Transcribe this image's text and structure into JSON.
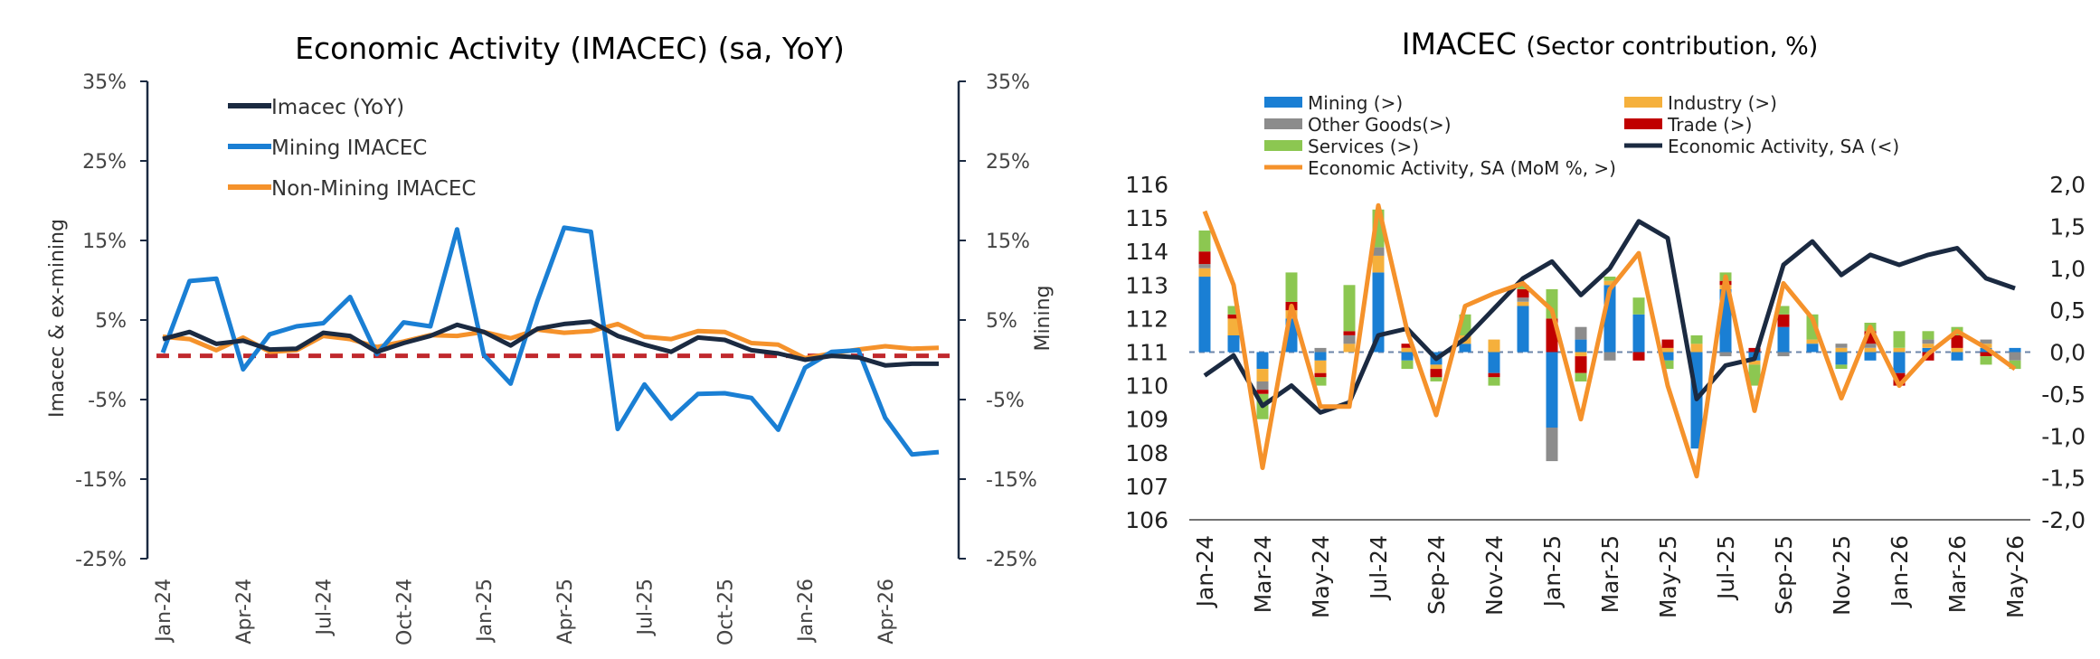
{
  "chart_data": [
    {
      "type": "line",
      "title": "Economic Activity (IMACEC)  (sa, YoY)",
      "ylabel": "Imacec & ex-mining",
      "y2label": "Mining",
      "ylim": [
        -25,
        35
      ],
      "y2lim": [
        -25,
        35
      ],
      "yticks": [
        "35%",
        "25%",
        "15%",
        "5%",
        "-5%",
        "-15%",
        "-25%"
      ],
      "y2ticks": [
        "35%",
        "25%",
        "15%",
        "5%",
        "-5%",
        "-15%",
        "-25%"
      ],
      "xticks": [
        "Jan-24",
        "Apr-24",
        "Jul-24",
        "Oct-24",
        "Jan-25",
        "Apr-25",
        "Jul-25",
        "Oct-25",
        "Jan-26",
        "Apr-26"
      ],
      "x": [
        "Jan-24",
        "Feb-24",
        "Mar-24",
        "Apr-24",
        "May-24",
        "Jun-24",
        "Jul-24",
        "Aug-24",
        "Sep-24",
        "Oct-24",
        "Nov-24",
        "Dec-24",
        "Jan-25",
        "Feb-25",
        "Mar-25",
        "Apr-25",
        "May-25",
        "Jun-25",
        "Jul-25",
        "Aug-25",
        "Sep-25",
        "Oct-25",
        "Nov-25",
        "Dec-25",
        "Jan-26",
        "Feb-26",
        "Mar-26",
        "Apr-26",
        "May-26",
        "Jun-26"
      ],
      "legend_position": "top-left",
      "series": [
        {
          "name": "Imacec (YoY)",
          "color": "#1b2a41",
          "values": [
            2.6,
            3.5,
            2.0,
            2.4,
            1.3,
            1.4,
            3.4,
            3.0,
            1.0,
            2.1,
            3.0,
            4.4,
            3.5,
            1.8,
            3.9,
            4.5,
            4.8,
            3.0,
            1.9,
            1.0,
            2.8,
            2.5,
            1.2,
            0.8,
            0.0,
            0.5,
            0.3,
            -0.7,
            -0.5,
            -0.5
          ]
        },
        {
          "name": "Mining IMACEC",
          "color": "#1a7fd4",
          "values": [
            0.9,
            9.9,
            10.2,
            -1.2,
            3.2,
            4.2,
            4.6,
            7.9,
            0.7,
            4.7,
            4.2,
            16.4,
            0.6,
            -3.0,
            7.4,
            16.6,
            16.1,
            -8.7,
            -3.1,
            -7.4,
            -4.3,
            -4.2,
            -4.8,
            -8.8,
            -1.0,
            1.0,
            1.2,
            -7.3,
            -11.9,
            -11.6
          ]
        },
        {
          "name": "Non-Mining IMACEC",
          "color": "#f5922b",
          "values": [
            2.9,
            2.6,
            1.2,
            2.8,
            1.0,
            1.2,
            3.0,
            2.6,
            1.6,
            2.3,
            3.1,
            3.0,
            3.5,
            2.7,
            3.8,
            3.4,
            3.6,
            4.5,
            2.9,
            2.6,
            3.6,
            3.5,
            2.1,
            1.9,
            0.2,
            0.8,
            1.3,
            1.7,
            1.4,
            1.5
          ]
        },
        {
          "name": "",
          "color": "#c0282d",
          "style": "dashed",
          "values": [
            0.5,
            0.5,
            0.5,
            0.5,
            0.5,
            0.5,
            0.5,
            0.5,
            0.5,
            0.5,
            0.5,
            0.5,
            0.5,
            0.5,
            0.5,
            0.5,
            0.5,
            0.5,
            0.5,
            0.5,
            0.5,
            0.5,
            0.5,
            0.5,
            0.5,
            0.5,
            0.5,
            0.5,
            0.5,
            0.5
          ]
        }
      ]
    },
    {
      "type": "bar+line",
      "title": "IMACEC",
      "subtitle": "(Sector contribution, %)",
      "ylim": [
        106,
        116
      ],
      "y2lim": [
        -2.0,
        2.0
      ],
      "yticks": [
        "116",
        "115",
        "114",
        "113",
        "112",
        "111",
        "110",
        "109",
        "108",
        "107",
        "106"
      ],
      "y2ticks": [
        "2,0",
        "1,5",
        "1,0",
        "0,5",
        "0,0",
        "-0,5",
        "-1,0",
        "-1,5",
        "-2,0"
      ],
      "xticks": [
        "Jan-24",
        "Mar-24",
        "May-24",
        "Jul-24",
        "Sep-24",
        "Nov-24",
        "Jan-25",
        "Mar-25",
        "May-25",
        "Jul-25",
        "Sep-25",
        "Nov-25",
        "Jan-26",
        "Mar-26",
        "May-26"
      ],
      "x": [
        "Jan-24",
        "Feb-24",
        "Mar-24",
        "Apr-24",
        "May-24",
        "Jun-24",
        "Jul-24",
        "Aug-24",
        "Sep-24",
        "Oct-24",
        "Nov-24",
        "Dec-24",
        "Jan-25",
        "Feb-25",
        "Mar-25",
        "Apr-25",
        "May-25",
        "Jun-25",
        "Jul-25",
        "Aug-25",
        "Sep-25",
        "Oct-25",
        "Nov-25",
        "Dec-25",
        "Jan-26",
        "Feb-26",
        "Mar-26",
        "Apr-26",
        "May-26"
      ],
      "legend_position": "top",
      "stacked_series": [
        {
          "name": "Mining (>)",
          "color": "#1a7fd4",
          "values": [
            0.9,
            0.2,
            -0.2,
            0.4,
            -0.1,
            0.0,
            0.95,
            -0.1,
            -0.15,
            0.1,
            -0.25,
            0.55,
            -0.9,
            0.15,
            0.8,
            0.45,
            -0.1,
            -1.15,
            0.75,
            -0.1,
            0.3,
            0.1,
            -0.15,
            -0.1,
            -0.25,
            0.05,
            -0.1,
            0.05,
            0.05
          ]
        },
        {
          "name": "Industry (>)",
          "color": "#f5b03c",
          "values": [
            0.1,
            0.2,
            -0.15,
            0.1,
            -0.15,
            0.1,
            0.2,
            0.05,
            -0.05,
            0.1,
            0.15,
            0.05,
            0.0,
            -0.05,
            0.05,
            0.0,
            0.05,
            0.1,
            0.05,
            -0.05,
            0.0,
            0.05,
            0.05,
            0.05,
            0.05,
            0.05,
            0.05,
            0.05,
            0.0
          ]
        },
        {
          "name": "Other Goods(>)",
          "color": "#8c8c8c",
          "values": [
            0.05,
            0.0,
            -0.1,
            0.0,
            0.05,
            0.1,
            0.1,
            0.0,
            0.0,
            0.0,
            0.0,
            0.05,
            -0.4,
            0.15,
            -0.1,
            0.0,
            0.0,
            0.0,
            -0.05,
            0.0,
            -0.05,
            0.0,
            0.05,
            0.05,
            0.0,
            0.05,
            0.0,
            0.05,
            -0.1
          ]
        },
        {
          "name": "Trade (>)",
          "color": "#c00000",
          "values": [
            0.15,
            0.05,
            -0.05,
            0.1,
            -0.05,
            0.05,
            0.0,
            0.05,
            -0.1,
            0.0,
            -0.05,
            0.1,
            0.4,
            -0.2,
            0.0,
            -0.1,
            0.1,
            0.0,
            0.05,
            0.05,
            0.15,
            0.0,
            0.0,
            0.15,
            -0.15,
            -0.1,
            0.15,
            -0.05,
            0.0
          ]
        },
        {
          "name": "Services (>)",
          "color": "#8cc751",
          "values": [
            0.25,
            0.1,
            -0.3,
            0.35,
            -0.1,
            0.55,
            0.45,
            -0.1,
            -0.05,
            0.25,
            -0.1,
            0.05,
            0.35,
            -0.1,
            0.05,
            0.2,
            -0.1,
            0.1,
            0.1,
            -0.25,
            0.1,
            0.3,
            -0.05,
            0.1,
            0.2,
            0.1,
            0.1,
            -0.1,
            -0.1
          ]
        }
      ],
      "series": [
        {
          "name": "Economic Activity, SA (<)",
          "axis": "left",
          "color": "#1b2a41",
          "values": [
            110.3,
            110.9,
            109.4,
            110.0,
            109.2,
            109.5,
            111.5,
            111.7,
            110.8,
            111.4,
            112.3,
            113.2,
            113.7,
            112.7,
            113.5,
            114.9,
            114.4,
            109.6,
            110.6,
            110.8,
            113.6,
            114.3,
            113.3,
            113.9,
            113.6,
            113.9,
            114.1,
            113.2,
            112.9
          ]
        },
        {
          "name": "Economic Activity, SA (MoM %, >)",
          "axis": "right",
          "color": "#f5922b",
          "values": [
            1.68,
            0.8,
            -1.38,
            0.55,
            -0.65,
            -0.65,
            1.75,
            0.25,
            -0.75,
            0.55,
            0.7,
            0.82,
            0.5,
            -0.8,
            0.75,
            1.18,
            -0.4,
            -1.48,
            0.9,
            -0.7,
            0.82,
            0.4,
            -0.55,
            0.3,
            -0.4,
            -0.02,
            0.25,
            0.05,
            -0.2
          ]
        }
      ]
    }
  ],
  "left": {
    "title": "Economic Activity (IMACEC)  (sa, YoY)",
    "ylabel": "Imacec & ex-mining",
    "y2label": "Mining",
    "legend": [
      "Imacec (YoY)",
      "Mining IMACEC",
      "Non-Mining IMACEC"
    ]
  },
  "right": {
    "title_main": "IMACEC ",
    "title_sub": "(Sector contribution, %)",
    "legend": [
      "Mining (>)",
      "Industry (>)",
      "Other Goods(>)",
      "Trade (>)",
      "Services (>)",
      "Economic Activity, SA (<)",
      "Economic Activity, SA (MoM %, >)"
    ]
  }
}
